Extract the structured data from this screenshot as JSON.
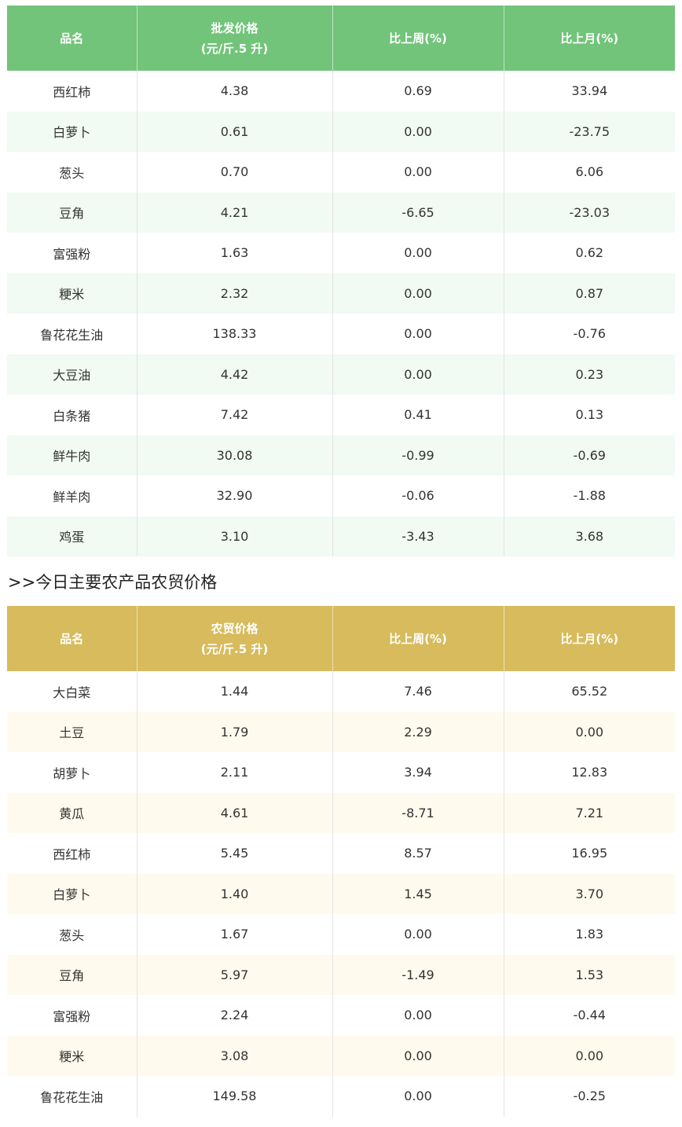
{
  "wholesale_table": {
    "headers": {
      "name": "品名",
      "price_line1": "批发价格",
      "price_line2": "(元/斤.5 升)",
      "week": "比上周(%)",
      "month": "比上月(%)"
    },
    "rows": [
      {
        "name": "西红柿",
        "price": "4.38",
        "week": "0.69",
        "month": "33.94"
      },
      {
        "name": "白萝卜",
        "price": "0.61",
        "week": "0.00",
        "month": "-23.75"
      },
      {
        "name": "葱头",
        "price": "0.70",
        "week": "0.00",
        "month": "6.06"
      },
      {
        "name": "豆角",
        "price": "4.21",
        "week": "-6.65",
        "month": "-23.03"
      },
      {
        "name": "富强粉",
        "price": "1.63",
        "week": "0.00",
        "month": "0.62"
      },
      {
        "name": "粳米",
        "price": "2.32",
        "week": "0.00",
        "month": "0.87"
      },
      {
        "name": "鲁花花生油",
        "price": "138.33",
        "week": "0.00",
        "month": "-0.76"
      },
      {
        "name": "大豆油",
        "price": "4.42",
        "week": "0.00",
        "month": "0.23"
      },
      {
        "name": "白条猪",
        "price": "7.42",
        "week": "0.41",
        "month": "0.13"
      },
      {
        "name": "鲜牛肉",
        "price": "30.08",
        "week": "-0.99",
        "month": "-0.69"
      },
      {
        "name": "鲜羊肉",
        "price": "32.90",
        "week": "-0.06",
        "month": "-1.88"
      },
      {
        "name": "鸡蛋",
        "price": "3.10",
        "week": "-3.43",
        "month": "3.68"
      }
    ]
  },
  "section_title": ">>今日主要农产品农贸价格",
  "market_table": {
    "headers": {
      "name": "品名",
      "price_line1": "农贸价格",
      "price_line2": "(元/斤.5 升)",
      "week": "比上周(%)",
      "month": "比上月(%)"
    },
    "rows": [
      {
        "name": "大白菜",
        "price": "1.44",
        "week": "7.46",
        "month": "65.52"
      },
      {
        "name": "土豆",
        "price": "1.79",
        "week": "2.29",
        "month": "0.00"
      },
      {
        "name": "胡萝卜",
        "price": "2.11",
        "week": "3.94",
        "month": "12.83"
      },
      {
        "name": "黄瓜",
        "price": "4.61",
        "week": "-8.71",
        "month": "7.21"
      },
      {
        "name": "西红柿",
        "price": "5.45",
        "week": "8.57",
        "month": "16.95"
      },
      {
        "name": "白萝卜",
        "price": "1.40",
        "week": "1.45",
        "month": "3.70"
      },
      {
        "name": "葱头",
        "price": "1.67",
        "week": "0.00",
        "month": "1.83"
      },
      {
        "name": "豆角",
        "price": "5.97",
        "week": "-1.49",
        "month": "1.53"
      },
      {
        "name": "富强粉",
        "price": "2.24",
        "week": "0.00",
        "month": "-0.44"
      },
      {
        "name": "粳米",
        "price": "3.08",
        "week": "0.00",
        "month": "0.00"
      },
      {
        "name": "鲁花花生油",
        "price": "149.58",
        "week": "0.00",
        "month": "-0.25"
      }
    ]
  },
  "colors": {
    "wholesale_header": "#72c47a",
    "wholesale_stripe": "#f1faf3",
    "market_header": "#d7bb5d",
    "market_stripe": "#fefbee"
  }
}
